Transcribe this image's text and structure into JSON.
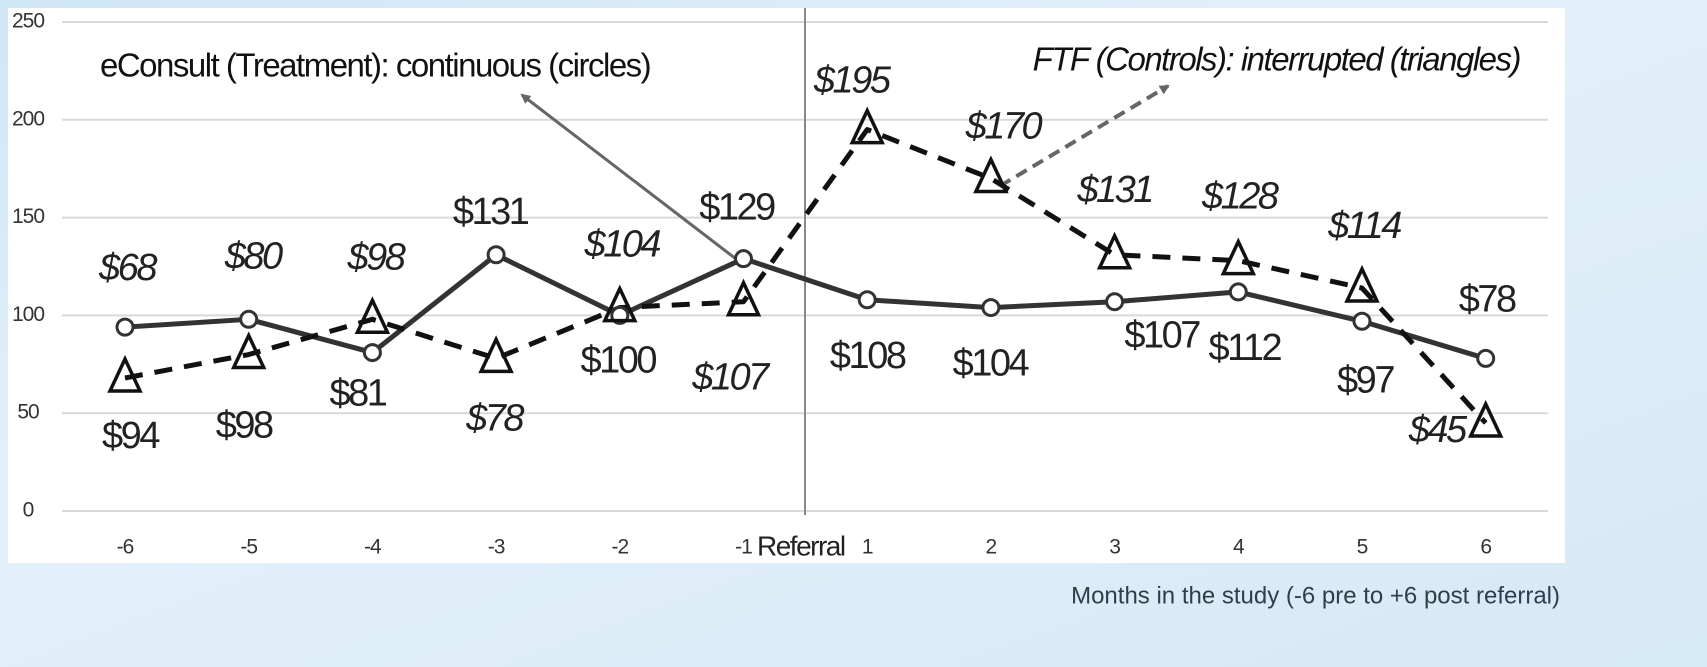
{
  "chart_data": {
    "type": "line",
    "categories": [
      "-6",
      "-5",
      "-4",
      "-3",
      "-2",
      "-1",
      "1",
      "2",
      "3",
      "4",
      "5",
      "6"
    ],
    "series": [
      {
        "name": "eConsult (Treatment): continuous (circles)",
        "color": "#333333",
        "marker": "circle",
        "dash": false,
        "values": [
          94,
          98,
          81,
          131,
          100,
          129,
          108,
          104,
          107,
          112,
          97,
          78
        ],
        "value_labels": [
          "$94",
          "$98",
          "$81",
          "$131",
          "$100",
          "$129",
          "$108",
          "$104",
          "$107",
          "$112",
          "$97",
          "$78"
        ]
      },
      {
        "name": "FTF (Controls): interrupted (triangles)",
        "color": "#111111",
        "marker": "triangle",
        "dash": true,
        "values": [
          68,
          80,
          98,
          78,
          104,
          107,
          195,
          170,
          131,
          128,
          114,
          45
        ],
        "value_labels": [
          "$68",
          "$80",
          "$98",
          "$78",
          "$104",
          "$107",
          "$195",
          "$170",
          "$131",
          "$128",
          "$114",
          "$45"
        ]
      }
    ],
    "referral_label": "Referral",
    "x_label": "Months in the study (-6 pre to +6 post referral)",
    "ylim": [
      0,
      250
    ],
    "yticks": [
      0,
      50,
      100,
      150,
      200,
      250
    ],
    "grid": true
  }
}
